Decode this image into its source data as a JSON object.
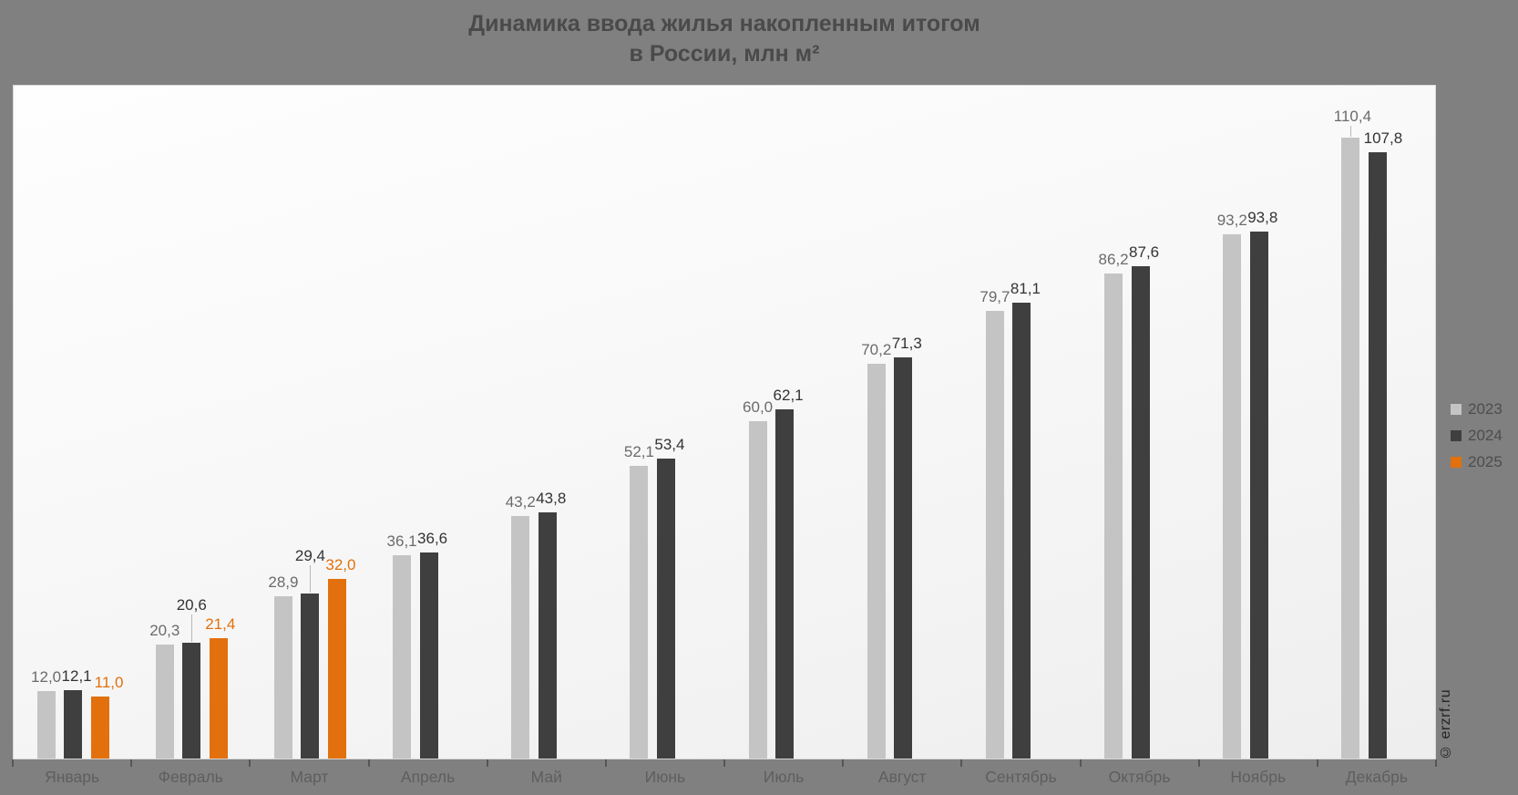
{
  "page": {
    "background_color": "#808080",
    "plot_border_color": "#d8d8d8"
  },
  "title": {
    "line1": "Динамика ввода жилья накопленным итогом",
    "line2": "в России, млн м²"
  },
  "watermark": "© erzrf.ru",
  "chart_data": {
    "type": "bar",
    "title": "Динамика ввода жилья накопленным итогом в России, млн м²",
    "categories": [
      "Январь",
      "Февраль",
      "Март",
      "Апрель",
      "Май",
      "Июнь",
      "Июль",
      "Август",
      "Сентябрь",
      "Октябрь",
      "Ноябрь",
      "Декабрь"
    ],
    "xlabel": "",
    "ylabel": "млн м²",
    "ylim": [
      0,
      120
    ],
    "grid": false,
    "legend_position": "right-middle",
    "value_label_decimal_separator": ",",
    "series": [
      {
        "name": "2023",
        "color": "#c4c4c4",
        "label_color": "#6b6b6b",
        "values": [
          12.0,
          20.3,
          28.9,
          36.1,
          43.2,
          52.1,
          60.0,
          70.2,
          79.7,
          86.2,
          93.2,
          110.4
        ],
        "value_labels": [
          "12,0",
          "20,3",
          "28,9",
          "36,1",
          "43,2",
          "52,1",
          "60,0",
          "70,2",
          "79,7",
          "86,2",
          "93,2",
          "110,4"
        ],
        "label_lift": [
          0,
          0,
          0,
          0,
          0,
          0,
          0,
          0,
          0,
          0,
          0,
          8
        ],
        "label_dx": [
          0,
          0,
          0,
          0,
          0,
          0,
          0,
          0,
          0,
          0,
          0,
          2
        ]
      },
      {
        "name": "2024",
        "color": "#3f3f3f",
        "label_color": "#333333",
        "values": [
          12.1,
          20.6,
          29.4,
          36.6,
          43.8,
          53.4,
          62.1,
          71.3,
          81.1,
          87.6,
          93.8,
          107.8
        ],
        "value_labels": [
          "12,1",
          "20,6",
          "29,4",
          "36,6",
          "43,8",
          "53,4",
          "62,1",
          "71,3",
          "81,1",
          "87,6",
          "93,8",
          "107,8"
        ],
        "label_lift": [
          0,
          26,
          26,
          0,
          0,
          0,
          0,
          0,
          0,
          0,
          0,
          0
        ],
        "label_dx": [
          4,
          0,
          0,
          4,
          4,
          4,
          4,
          4,
          4,
          4,
          4,
          6
        ]
      },
      {
        "name": "2025",
        "color": "#e2700d",
        "label_color": "#e2700d",
        "values": [
          11.0,
          21.4,
          32.0
        ],
        "value_labels": [
          "11,0",
          "21,4",
          "32,0"
        ],
        "label_lift": [
          0,
          0,
          0
        ],
        "label_dx": [
          10,
          2,
          4
        ]
      }
    ]
  }
}
